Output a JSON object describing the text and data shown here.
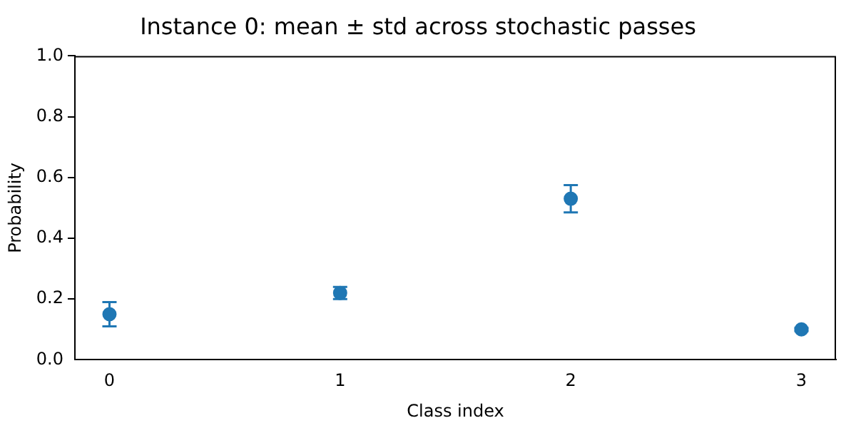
{
  "chart_data": {
    "type": "scatter",
    "title": "Instance 0: mean ± std across stochastic passes",
    "xlabel": "Class index",
    "ylabel": "Probability",
    "x": [
      0,
      1,
      2,
      3
    ],
    "series": [
      {
        "color": "#1f77b4",
        "values": [
          0.15,
          0.22,
          0.53,
          0.1
        ],
        "errors": [
          0.04,
          0.02,
          0.045,
          0.005
        ]
      }
    ],
    "xlim": [
      -0.15,
      3.15
    ],
    "xticks": [
      0,
      1,
      2,
      3
    ],
    "ylim": [
      0,
      1
    ],
    "yticks": [
      {
        "value": 0,
        "label": "0.0"
      },
      0.2,
      0.4,
      0.6,
      0.8,
      {
        "value": 1,
        "label": "1.0"
      }
    ],
    "grid": false,
    "legend": false,
    "marker": "circle"
  }
}
